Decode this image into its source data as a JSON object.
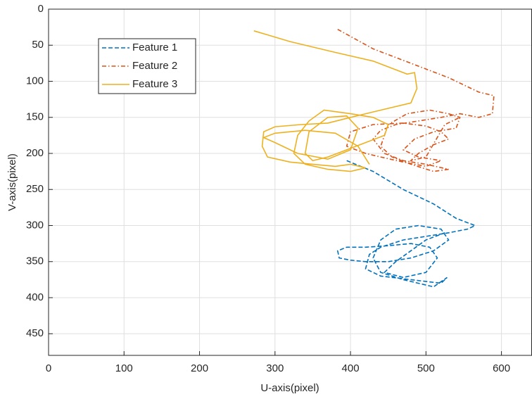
{
  "chart_data": {
    "type": "line",
    "x_label": "U-axis(pixel)",
    "y_label": "V-axis(pixel)",
    "xlim": [
      0,
      640
    ],
    "ylim": [
      0,
      480
    ],
    "y_reversed": true,
    "xticks": [
      0,
      100,
      200,
      300,
      400,
      500,
      600
    ],
    "yticks": [
      0,
      50,
      100,
      150,
      200,
      250,
      300,
      350,
      400,
      450
    ],
    "grid": true,
    "legend": "northwest",
    "series": [
      {
        "name": "Feature 1",
        "color": "#0072bd",
        "line_style": "dashed",
        "x": [
          395,
          430,
          470,
          510,
          540,
          565,
          555,
          530,
          500,
          470,
          440,
          425,
          420,
          440,
          480,
          520,
          528,
          510,
          470,
          440,
          430,
          440,
          460,
          490,
          520,
          530,
          510,
          480,
          450,
          420,
          400,
          385,
          383,
          395,
          420,
          450,
          480,
          505,
          515,
          500,
          470,
          445,
          460,
          500,
          525
        ],
        "values": [
          210,
          225,
          250,
          270,
          290,
          300,
          305,
          310,
          315,
          320,
          330,
          340,
          360,
          370,
          375,
          380,
          372,
          385,
          375,
          365,
          345,
          320,
          305,
          300,
          305,
          320,
          335,
          345,
          350,
          350,
          348,
          345,
          335,
          330,
          330,
          328,
          325,
          330,
          345,
          365,
          372,
          365,
          350,
          320,
          310
        ]
      },
      {
        "name": "Feature 2",
        "color": "#d95319",
        "line_style": "dashdot",
        "x": [
          383,
          430,
          480,
          530,
          570,
          590,
          588,
          570,
          545,
          520,
          490,
          460,
          440,
          430,
          445,
          470,
          500,
          530,
          510,
          480,
          455,
          440,
          450,
          475,
          505,
          530,
          545,
          540,
          510,
          485,
          470,
          490,
          520,
          500,
          470,
          440,
          420,
          395,
          400,
          430,
          470,
          500,
          520,
          530,
          510,
          490,
          480,
          500,
          525,
          545
        ],
        "values": [
          28,
          55,
          75,
          95,
          115,
          120,
          145,
          150,
          145,
          150,
          155,
          160,
          168,
          180,
          200,
          210,
          215,
          222,
          225,
          215,
          205,
          190,
          160,
          145,
          140,
          145,
          150,
          165,
          170,
          180,
          195,
          205,
          210,
          218,
          212,
          205,
          200,
          190,
          170,
          160,
          158,
          162,
          170,
          180,
          188,
          200,
          210,
          205,
          160,
          150
        ]
      },
      {
        "name": "Feature 3",
        "color": "#edb120",
        "line_style": "solid",
        "x": [
          272,
          320,
          380,
          430,
          475,
          485,
          488,
          480,
          440,
          400,
          370,
          335,
          300,
          285,
          283,
          290,
          320,
          350,
          380,
          400,
          420,
          400,
          370,
          340,
          325,
          330,
          345,
          365,
          400,
          430,
          450,
          445,
          420,
          395,
          370,
          350,
          340,
          345,
          370,
          395,
          410,
          400,
          370,
          330,
          300,
          285,
          300,
          340,
          380,
          410,
          425
        ],
        "values": [
          30,
          45,
          60,
          72,
          90,
          88,
          110,
          130,
          140,
          150,
          158,
          160,
          163,
          170,
          190,
          205,
          212,
          215,
          218,
          215,
          220,
          225,
          222,
          215,
          200,
          175,
          155,
          140,
          145,
          150,
          160,
          175,
          185,
          195,
          205,
          210,
          200,
          170,
          150,
          148,
          165,
          195,
          208,
          200,
          185,
          178,
          172,
          168,
          172,
          190,
          215
        ]
      }
    ]
  }
}
